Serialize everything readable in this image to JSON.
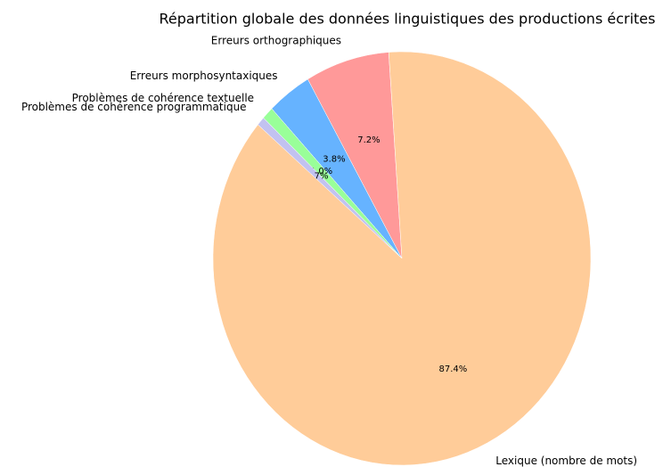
{
  "chart_data": {
    "type": "pie",
    "title": "Répartition globale des données linguistiques des productions écrites",
    "categories": [
      "Erreurs orthographiques",
      "Erreurs morphosyntaxiques",
      "Problèmes de cohérence textuelle",
      "Problèmes de cohérence programmatique",
      "Lexique (nombre de mots)"
    ],
    "values": [
      7.2,
      3.8,
      1.0,
      0.7,
      87.4
    ],
    "value_labels": [
      "7.2%",
      "3.8%",
      "1.0%",
      "0.7%",
      "87.4%"
    ],
    "colors": [
      "#ff9999",
      "#66b3ff",
      "#99ff99",
      "#c2c2f0",
      "#ffcc99"
    ]
  }
}
